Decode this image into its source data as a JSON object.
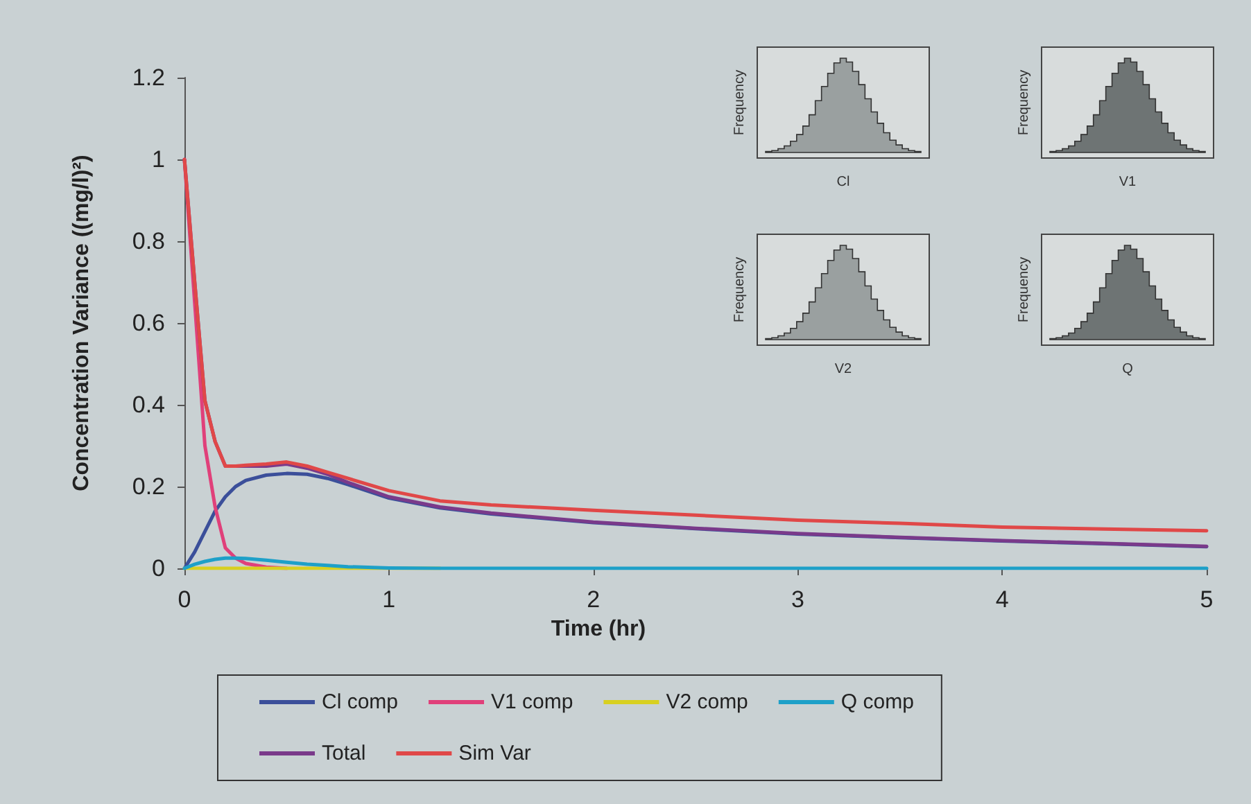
{
  "chart_data": {
    "type": "line",
    "xlabel": "Time (hr)",
    "ylabel": "Concentration Variance ((mg/l)²)",
    "x": [
      0,
      0.05,
      0.1,
      0.15,
      0.2,
      0.25,
      0.3,
      0.4,
      0.5,
      0.6,
      0.7,
      0.8,
      1,
      1.25,
      1.5,
      2,
      2.5,
      3,
      3.5,
      4,
      4.5,
      5
    ],
    "series": [
      {
        "name": "Cl comp",
        "color": "#3b4f9a",
        "values": [
          0,
          0.04,
          0.09,
          0.14,
          0.175,
          0.2,
          0.215,
          0.228,
          0.232,
          0.23,
          0.22,
          0.205,
          0.172,
          0.148,
          0.133,
          0.112,
          0.097,
          0.084,
          0.075,
          0.067,
          0.06,
          0.053
        ]
      },
      {
        "name": "V1 comp",
        "color": "#e0407a",
        "values": [
          1,
          0.65,
          0.3,
          0.15,
          0.05,
          0.025,
          0.012,
          0.003,
          0,
          null,
          null,
          null,
          null,
          null,
          null,
          null,
          null,
          null,
          null,
          null,
          null,
          null
        ]
      },
      {
        "name": "V2 comp",
        "color": "#d8d020",
        "values": [
          0,
          0,
          0,
          0,
          0,
          0,
          0,
          0,
          0,
          0,
          0,
          0,
          0,
          0,
          null,
          null,
          null,
          null,
          null,
          null,
          null,
          null
        ]
      },
      {
        "name": "Q comp",
        "color": "#1ea0c8",
        "values": [
          0,
          0.01,
          0.017,
          0.022,
          0.025,
          0.025,
          0.024,
          0.02,
          0.015,
          0.01,
          0.007,
          0.004,
          0.001,
          0,
          0,
          0,
          0,
          0,
          0,
          0,
          0,
          0
        ]
      },
      {
        "name": "Total",
        "color": "#7a3a8a",
        "values": [
          1,
          0.7,
          0.41,
          0.31,
          0.25,
          0.25,
          0.25,
          0.25,
          0.255,
          0.245,
          0.23,
          0.21,
          0.175,
          0.15,
          0.135,
          0.113,
          0.098,
          0.085,
          0.076,
          0.068,
          0.061,
          0.054
        ]
      },
      {
        "name": "Sim Var",
        "color": "#e04848",
        "values": [
          1,
          0.7,
          0.41,
          0.31,
          0.25,
          0.25,
          0.252,
          0.255,
          0.26,
          0.25,
          0.235,
          0.22,
          0.19,
          0.165,
          0.155,
          0.142,
          0.13,
          0.118,
          0.11,
          0.101,
          0.096,
          0.092
        ]
      }
    ],
    "xlim": [
      0,
      5
    ],
    "xticks": [
      0,
      1,
      2,
      3,
      4,
      5
    ],
    "ylim": [
      0,
      1.2
    ],
    "yticks": [
      0,
      0.2,
      0.4,
      0.6,
      0.8,
      1,
      1.2
    ],
    "grid": false,
    "legend": "bottom",
    "marker": "none",
    "line_style": "solid",
    "annotations": [
      "Frequency",
      "Cl",
      "Frequency",
      "V1",
      "Frequency",
      "V2",
      "Frequency",
      "Q"
    ]
  }
}
